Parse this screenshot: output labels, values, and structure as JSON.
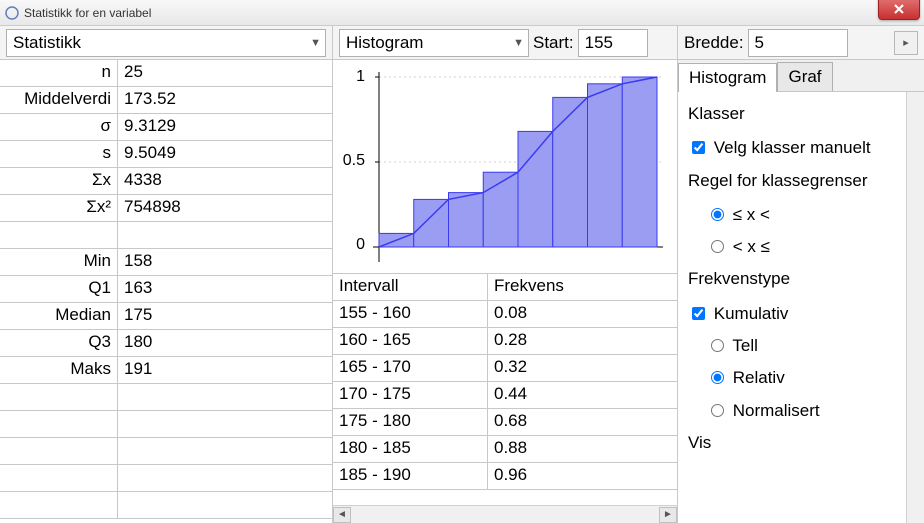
{
  "window": {
    "title": "Statistikk for en variabel"
  },
  "left": {
    "dropdown": "Statistikk",
    "rows": [
      {
        "label": "n",
        "value": "25"
      },
      {
        "label": "Middelverdi",
        "value": "173.52"
      },
      {
        "label": "σ",
        "value": "9.3129"
      },
      {
        "label": "s",
        "value": "9.5049"
      },
      {
        "label": "Σx",
        "value": "4338"
      },
      {
        "label": "Σx²",
        "value": "754898"
      },
      {
        "label": "",
        "value": ""
      },
      {
        "label": "Min",
        "value": "158"
      },
      {
        "label": "Q1",
        "value": "163"
      },
      {
        "label": "Median",
        "value": "175"
      },
      {
        "label": "Q3",
        "value": "180"
      },
      {
        "label": "Maks",
        "value": "191"
      }
    ]
  },
  "mid": {
    "dropdown": "Histogram",
    "start_label": "Start:",
    "start_value": "155",
    "chart": {
      "type": "histogram_cumulative",
      "background": "#ffffff",
      "bar_fill": "#9b9df2",
      "bar_stroke": "#3a3af0",
      "line_stroke": "#3a3af0",
      "grid_color": "#d0d0d0",
      "ylim": [
        0,
        1
      ],
      "yticks": [
        0,
        0.5,
        1
      ],
      "bar_values": [
        0.08,
        0.28,
        0.32,
        0.44,
        0.68,
        0.88,
        0.96,
        1.0
      ],
      "bin_edges": [
        155,
        160,
        165,
        170,
        175,
        180,
        185,
        190,
        195
      ]
    },
    "freq_header": {
      "c1": "Intervall",
      "c2": "Frekvens"
    },
    "freq_rows": [
      {
        "c1": "155 - 160",
        "c2": "0.08"
      },
      {
        "c1": "160 - 165",
        "c2": "0.28"
      },
      {
        "c1": "165 - 170",
        "c2": "0.32"
      },
      {
        "c1": "170 - 175",
        "c2": "0.44"
      },
      {
        "c1": "175 - 180",
        "c2": "0.68"
      },
      {
        "c1": "180 - 185",
        "c2": "0.88"
      },
      {
        "c1": "185 - 190",
        "c2": "0.96"
      }
    ]
  },
  "right": {
    "bredde_label": "Bredde:",
    "bredde_value": "5",
    "tabs": {
      "histogram": "Histogram",
      "graf": "Graf"
    },
    "klasser_header": "Klasser",
    "velg_manuelt": "Velg klasser manuelt",
    "regel_header": "Regel for klassegrenser",
    "rule_lte_lt": "≤ x <",
    "rule_lt_lte": "< x ≤",
    "frekvenstype_header": "Frekvenstype",
    "kumulativ": "Kumulativ",
    "tell": "Tell",
    "relativ": "Relativ",
    "normalisert": "Normalisert",
    "vis_header": "Vis"
  }
}
